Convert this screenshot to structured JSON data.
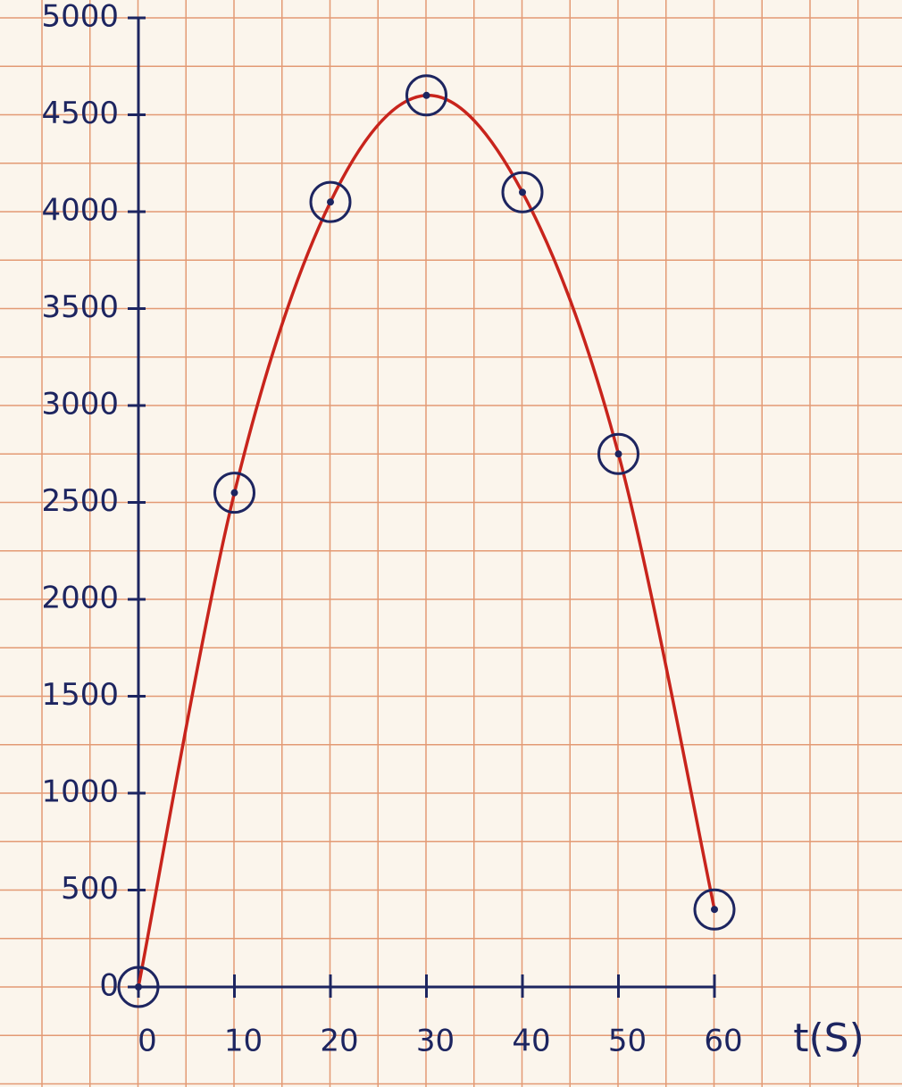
{
  "chart_data": {
    "type": "line",
    "x_label": "t(S)",
    "x": [
      0,
      10,
      20,
      30,
      40,
      50,
      60
    ],
    "series": [
      {
        "color": "#c8241c",
        "values": [
          0,
          2550,
          4050,
          4600,
          4100,
          2750,
          400
        ]
      }
    ],
    "xlim": [
      0,
      60
    ],
    "xticks": [
      0,
      10,
      20,
      30,
      40,
      50,
      60
    ],
    "ylim": [
      0,
      5000
    ],
    "yticks": [
      0,
      500,
      1000,
      1500,
      2000,
      2500,
      3000,
      3500,
      4000,
      4500,
      5000
    ]
  }
}
